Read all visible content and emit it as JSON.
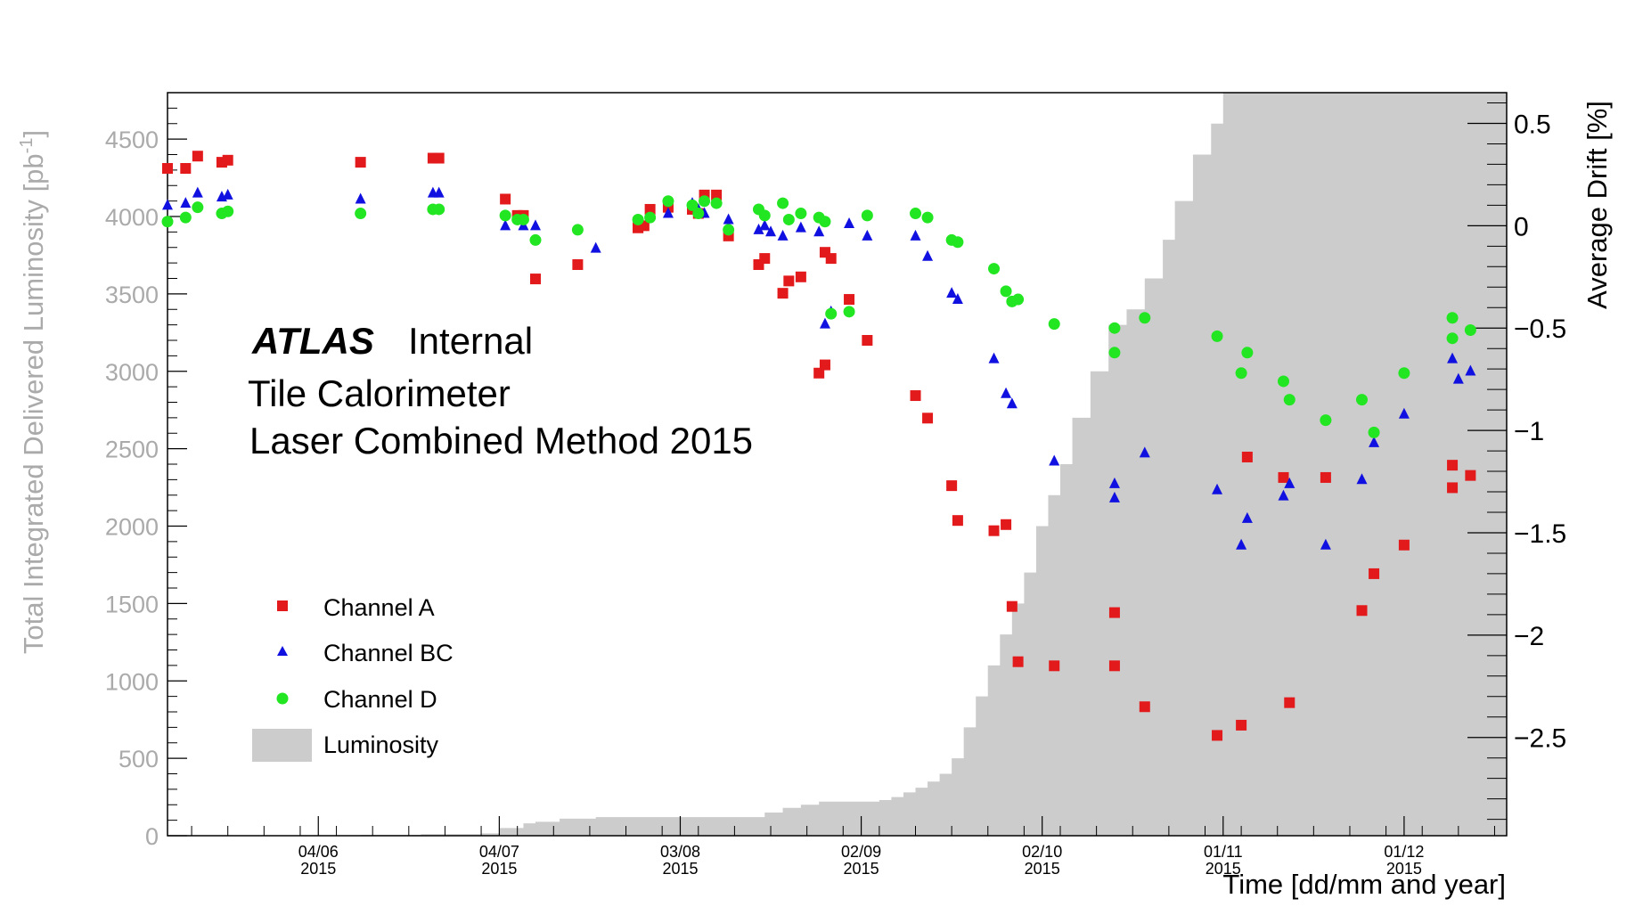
{
  "chart_data": {
    "type": "scatter",
    "xlabel": "Time [dd/mm and year]",
    "ylabel_left": "Total Integrated Delivered Luminosity [pb",
    "ylabel_left_sup": "-1",
    "ylabel_left_close": "]",
    "ylabel_right": "Average Drift [%]",
    "left_ylim": [
      0,
      4800
    ],
    "right_ylim": [
      -2.98,
      0.65
    ],
    "xlim": [
      "2015-05-10",
      "2015-12-18"
    ],
    "left_ticks": [
      "0",
      "500",
      "1000",
      "1500",
      "2000",
      "2500",
      "3000",
      "3500",
      "4000",
      "4500"
    ],
    "right_ticks": [
      "−2.5",
      "−2",
      "−1.5",
      "−1",
      "−0.5",
      "0",
      "0.5"
    ],
    "right_tick_values": [
      -2.5,
      -2,
      -1.5,
      -1,
      -0.5,
      0,
      0.5
    ],
    "x_ticks": [
      {
        "date": "2015-06-04",
        "day": "04/06",
        "year": "2015"
      },
      {
        "date": "2015-07-04",
        "day": "04/07",
        "year": "2015"
      },
      {
        "date": "2015-08-03",
        "day": "03/08",
        "year": "2015"
      },
      {
        "date": "2015-09-02",
        "day": "02/09",
        "year": "2015"
      },
      {
        "date": "2015-10-02",
        "day": "02/10",
        "year": "2015"
      },
      {
        "date": "2015-11-01",
        "day": "01/11",
        "year": "2015"
      },
      {
        "date": "2015-12-01",
        "day": "01/12",
        "year": "2015"
      }
    ],
    "annotation": {
      "experiment": "ATLAS",
      "status": "Internal",
      "line1": "Tile Calorimeter",
      "line2": "Laser Combined Method 2015"
    },
    "legend": {
      "placement": "bottom-left",
      "entries": [
        "Channel A",
        "Channel BC",
        "Channel D",
        "Luminosity"
      ]
    },
    "colors": {
      "channel_a": "#e31a1c",
      "channel_bc": "#1010e0",
      "channel_d": "#22e622",
      "luminosity": "#cccccc",
      "left_axis_text": "#aaaaaa"
    },
    "luminosity": {
      "x": [
        "2015-05-10",
        "2015-06-11",
        "2015-06-21",
        "2015-07-01",
        "2015-07-04",
        "2015-07-08",
        "2015-07-10",
        "2015-07-14",
        "2015-07-20",
        "2015-07-28",
        "2015-08-09",
        "2015-08-13",
        "2015-08-17",
        "2015-08-20",
        "2015-08-23",
        "2015-08-26",
        "2015-09-05",
        "2015-09-07",
        "2015-09-09",
        "2015-09-11",
        "2015-09-13",
        "2015-09-15",
        "2015-09-17",
        "2015-09-19",
        "2015-09-21",
        "2015-09-23",
        "2015-09-25",
        "2015-09-27",
        "2015-09-29",
        "2015-10-01",
        "2015-10-03",
        "2015-10-05",
        "2015-10-07",
        "2015-10-10",
        "2015-10-13",
        "2015-10-16",
        "2015-10-19",
        "2015-10-22",
        "2015-10-24",
        "2015-10-27",
        "2015-10-30",
        "2015-11-01",
        "2015-11-03",
        "2015-11-05",
        "2015-12-18"
      ],
      "values": [
        0,
        5,
        10,
        15,
        50,
        80,
        90,
        110,
        120,
        120,
        120,
        120,
        150,
        180,
        200,
        220,
        230,
        250,
        280,
        310,
        350,
        400,
        500,
        700,
        900,
        1100,
        1300,
        1500,
        1700,
        2000,
        2200,
        2400,
        2700,
        3000,
        3300,
        3400,
        3600,
        3850,
        4100,
        4400,
        4600,
        4900,
        5100,
        5300,
        5300
      ]
    },
    "series": [
      {
        "name": "Channel A",
        "marker": "square",
        "x": [
          "2015-05-10",
          "2015-05-13",
          "2015-05-15",
          "2015-05-19",
          "2015-05-20",
          "2015-06-11",
          "2015-06-23",
          "2015-06-24",
          "2015-07-05",
          "2015-07-07",
          "2015-07-08",
          "2015-07-10",
          "2015-07-17",
          "2015-07-27",
          "2015-07-27",
          "2015-07-28",
          "2015-07-29",
          "2015-08-01",
          "2015-08-05",
          "2015-08-06",
          "2015-08-07",
          "2015-08-09",
          "2015-08-11",
          "2015-08-16",
          "2015-08-17",
          "2015-08-20",
          "2015-08-21",
          "2015-08-23",
          "2015-08-26",
          "2015-08-27",
          "2015-08-27",
          "2015-08-28",
          "2015-08-31",
          "2015-09-03",
          "2015-09-11",
          "2015-09-13",
          "2015-09-17",
          "2015-09-18",
          "2015-09-24",
          "2015-09-26",
          "2015-09-27",
          "2015-09-28",
          "2015-10-04",
          "2015-10-14",
          "2015-10-14",
          "2015-10-19",
          "2015-10-31",
          "2015-11-04",
          "2015-11-05",
          "2015-11-11",
          "2015-11-12",
          "2015-11-18",
          "2015-11-24",
          "2015-11-26",
          "2015-12-01",
          "2015-12-09",
          "2015-12-09",
          "2015-12-12"
        ],
        "values": [
          0.28,
          0.28,
          0.34,
          0.31,
          0.32,
          0.31,
          0.33,
          0.33,
          0.13,
          0.05,
          0.05,
          -0.26,
          -0.19,
          -0.01,
          -0.01,
          0.0,
          0.08,
          0.09,
          0.08,
          0.06,
          0.15,
          0.15,
          -0.05,
          -0.19,
          -0.16,
          -0.33,
          -0.27,
          -0.25,
          -0.72,
          -0.68,
          -0.13,
          -0.16,
          -0.36,
          -0.56,
          -0.83,
          -0.94,
          -1.27,
          -1.44,
          -1.49,
          -1.46,
          -1.86,
          -2.13,
          -2.15,
          -1.89,
          -2.15,
          -2.35,
          -2.49,
          -2.44,
          -1.13,
          -1.23,
          -2.33,
          -1.23,
          -1.88,
          -1.7,
          -1.56,
          -1.17,
          -1.28,
          -1.22
        ]
      },
      {
        "name": "Channel BC",
        "marker": "triangle",
        "x": [
          "2015-05-10",
          "2015-05-13",
          "2015-05-15",
          "2015-05-19",
          "2015-05-20",
          "2015-06-11",
          "2015-06-23",
          "2015-06-24",
          "2015-07-05",
          "2015-07-08",
          "2015-07-10",
          "2015-07-20",
          "2015-08-01",
          "2015-08-05",
          "2015-08-06",
          "2015-08-07",
          "2015-08-11",
          "2015-08-16",
          "2015-08-17",
          "2015-08-18",
          "2015-08-20",
          "2015-08-23",
          "2015-08-26",
          "2015-08-27",
          "2015-08-28",
          "2015-08-31",
          "2015-09-03",
          "2015-09-11",
          "2015-09-13",
          "2015-09-17",
          "2015-09-18",
          "2015-09-24",
          "2015-09-26",
          "2015-09-27",
          "2015-10-04",
          "2015-10-14",
          "2015-10-14",
          "2015-10-19",
          "2015-10-31",
          "2015-11-04",
          "2015-11-05",
          "2015-11-11",
          "2015-11-12",
          "2015-11-18",
          "2015-11-24",
          "2015-11-26",
          "2015-12-01",
          "2015-12-09",
          "2015-12-10",
          "2015-12-12"
        ],
        "values": [
          0.1,
          0.11,
          0.16,
          0.14,
          0.15,
          0.13,
          0.16,
          0.16,
          0.0,
          0.0,
          -0.0,
          -0.11,
          0.06,
          0.11,
          0.08,
          0.06,
          0.03,
          -0.02,
          0.0,
          -0.03,
          -0.05,
          -0.01,
          -0.03,
          -0.48,
          -0.42,
          0.01,
          -0.05,
          -0.05,
          -0.15,
          -0.33,
          -0.36,
          -0.65,
          -0.82,
          -0.87,
          -1.15,
          -1.26,
          -1.33,
          -1.11,
          -1.29,
          -1.56,
          -1.43,
          -1.32,
          -1.26,
          -1.56,
          -1.24,
          -1.06,
          -0.92,
          -0.65,
          -0.75,
          -0.71
        ]
      },
      {
        "name": "Channel D",
        "marker": "circle",
        "x": [
          "2015-05-10",
          "2015-05-13",
          "2015-05-15",
          "2015-05-19",
          "2015-05-20",
          "2015-06-11",
          "2015-06-23",
          "2015-06-24",
          "2015-07-05",
          "2015-07-07",
          "2015-07-08",
          "2015-07-10",
          "2015-07-17",
          "2015-07-27",
          "2015-07-29",
          "2015-08-01",
          "2015-08-05",
          "2015-08-06",
          "2015-08-07",
          "2015-08-09",
          "2015-08-11",
          "2015-08-16",
          "2015-08-17",
          "2015-08-20",
          "2015-08-21",
          "2015-08-23",
          "2015-08-26",
          "2015-08-27",
          "2015-08-28",
          "2015-08-31",
          "2015-09-03",
          "2015-09-11",
          "2015-09-13",
          "2015-09-17",
          "2015-09-18",
          "2015-09-24",
          "2015-09-26",
          "2015-09-27",
          "2015-09-28",
          "2015-10-04",
          "2015-10-14",
          "2015-10-14",
          "2015-10-19",
          "2015-10-31",
          "2015-11-04",
          "2015-11-05",
          "2015-11-11",
          "2015-11-12",
          "2015-11-18",
          "2015-11-24",
          "2015-11-26",
          "2015-12-01",
          "2015-12-09",
          "2015-12-09",
          "2015-12-12"
        ],
        "values": [
          0.02,
          0.04,
          0.09,
          0.06,
          0.07,
          0.06,
          0.08,
          0.08,
          0.05,
          0.03,
          0.03,
          -0.07,
          -0.02,
          0.03,
          0.04,
          0.12,
          0.1,
          0.06,
          0.12,
          0.11,
          -0.02,
          0.08,
          0.05,
          0.11,
          0.03,
          0.06,
          0.04,
          0.02,
          -0.43,
          -0.42,
          0.05,
          0.06,
          0.04,
          -0.07,
          -0.08,
          -0.21,
          -0.32,
          -0.37,
          -0.36,
          -0.48,
          -0.5,
          -0.62,
          -0.45,
          -0.54,
          -0.72,
          -0.62,
          -0.76,
          -0.85,
          -0.95,
          -0.85,
          -1.01,
          -0.72,
          -0.45,
          -0.55,
          -0.51
        ]
      }
    ]
  }
}
